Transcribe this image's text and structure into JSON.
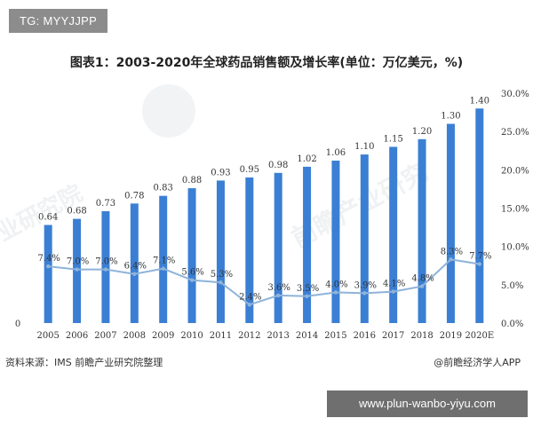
{
  "tag_label": "TG: MYYJJPP",
  "source_text": "资料来源：IMS 前瞻产业研究院整理",
  "brand_text": "@前瞻经济学人APP",
  "url_badge": "www.plun-wanbo-yiyu.com",
  "colors": {
    "bar": "#3b7fd4",
    "line": "#8fb3d9",
    "axis_text": "#333333"
  },
  "chart_data": {
    "type": "bar",
    "title": "图表1：2003-2020年全球药品销售额及增长率(单位：万亿美元，%)",
    "categories": [
      "2005",
      "2006",
      "2007",
      "2008",
      "2009",
      "2010",
      "2011",
      "2012",
      "2013",
      "2014",
      "2015",
      "2016",
      "2017",
      "2018",
      "2019",
      "2020E"
    ],
    "series": [
      {
        "type": "bar",
        "axis": "left",
        "values": [
          0.64,
          0.68,
          0.73,
          0.78,
          0.83,
          0.88,
          0.93,
          0.95,
          0.98,
          1.02,
          1.06,
          1.1,
          1.15,
          1.2,
          1.3,
          1.4
        ],
        "labels": [
          "0.64",
          "0.68",
          "0.73",
          "0.78",
          "0.83",
          "0.88",
          "0.93",
          "0.95",
          "0.98",
          "1.02",
          "1.06",
          "1.10",
          "1.15",
          "1.20",
          "1.30",
          "1.40"
        ]
      },
      {
        "type": "line",
        "axis": "right",
        "values": [
          7.4,
          7.0,
          7.0,
          6.4,
          7.1,
          5.6,
          5.3,
          2.4,
          3.6,
          3.5,
          4.0,
          3.9,
          4.1,
          4.8,
          8.3,
          7.7
        ],
        "labels": [
          "7.4%",
          "7.0%",
          "7.0%",
          "6.4%",
          "7.1%",
          "5.6%",
          "5.3%",
          "2.4%",
          "3.6%",
          "3.5%",
          "4.0%",
          "3.9%",
          "4.1%",
          "4.8%",
          "8.3%",
          "7.7%"
        ]
      }
    ],
    "y_left": {
      "ylim": [
        0,
        1.4
      ],
      "ticks": [
        "0"
      ]
    },
    "y_right": {
      "ylim": [
        0,
        30
      ],
      "tick_values": [
        0,
        5,
        10,
        15,
        20,
        25,
        30
      ],
      "ticks": [
        "0.0%",
        "5.0%",
        "10.0%",
        "15.0%",
        "20.0%",
        "25.0%",
        "30.0%"
      ]
    },
    "grid": false,
    "legend": "none"
  }
}
